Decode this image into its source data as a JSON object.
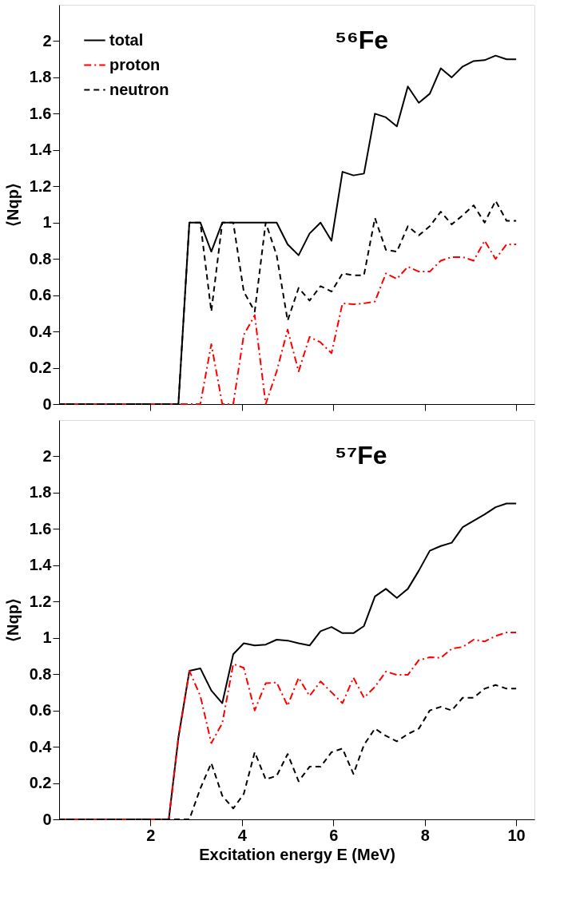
{
  "chart_data": [
    {
      "type": "line",
      "annotations": [
        "⁵⁶Fe"
      ],
      "ylabel": "⟨Nqp⟩",
      "xlim": [
        0,
        10.4
      ],
      "xticks": [
        2,
        4,
        6,
        8,
        10
      ],
      "ylim": [
        0,
        2.2
      ],
      "yticks": [
        0,
        0.2,
        0.4,
        0.6,
        0.8,
        1,
        1.2,
        1.4,
        1.6,
        1.8,
        2
      ],
      "tick_labels": "y",
      "legend": "top left",
      "grid": false,
      "x": [
        0,
        2.61,
        2.85,
        3.09,
        3.33,
        3.57,
        3.81,
        4.04,
        4.28,
        4.52,
        4.76,
        5.0,
        5.24,
        5.48,
        5.72,
        5.96,
        6.2,
        6.44,
        6.67,
        6.91,
        7.15,
        7.39,
        7.63,
        7.87,
        8.11,
        8.35,
        8.59,
        8.83,
        9.07,
        9.31,
        9.55,
        9.79,
        10.0
      ],
      "series": [
        {
          "name": "total",
          "color": "#000000",
          "line_style": "solid",
          "values": [
            0,
            0,
            1,
            1,
            0.84,
            1,
            1,
            1,
            1,
            1,
            1,
            0.88,
            0.82,
            0.94,
            1.0,
            0.9,
            1.28,
            1.26,
            1.27,
            1.6,
            1.58,
            1.53,
            1.75,
            1.66,
            1.71,
            1.85,
            1.8,
            1.86,
            1.89,
            1.895,
            1.92,
            1.9,
            1.9
          ]
        },
        {
          "name": "proton",
          "color": "#ff0000",
          "line_style": "dashdot",
          "values": [
            0,
            0,
            0,
            0,
            0.33,
            0,
            0,
            0.38,
            0.49,
            0,
            0.18,
            0.41,
            0.18,
            0.37,
            0.34,
            0.28,
            0.555,
            0.55,
            0.555,
            0.565,
            0.72,
            0.69,
            0.757,
            0.73,
            0.73,
            0.79,
            0.81,
            0.81,
            0.79,
            0.9,
            0.8,
            0.88,
            0.88
          ]
        },
        {
          "name": "neutron",
          "color": "#000000",
          "line_style": "dashed",
          "values": [
            0,
            0,
            1,
            1,
            0.51,
            1,
            1,
            0.62,
            0.51,
            1,
            0.82,
            0.46,
            0.64,
            0.57,
            0.65,
            0.62,
            0.72,
            0.71,
            0.71,
            1.025,
            0.85,
            0.84,
            0.98,
            0.93,
            0.98,
            1.06,
            0.99,
            1.04,
            1.095,
            1.0,
            1.12,
            1.01,
            1.01
          ]
        }
      ]
    },
    {
      "type": "line",
      "annotations": [
        "⁵⁷Fe"
      ],
      "ylabel": "⟨Nqp⟩",
      "xlabel": "Excitation energy E (MeV)",
      "xlim": [
        0,
        10.4
      ],
      "xticks": [
        2,
        4,
        6,
        8,
        10
      ],
      "ylim": [
        0,
        2.2
      ],
      "yticks": [
        0,
        0.2,
        0.4,
        0.6,
        0.8,
        1,
        1.2,
        1.4,
        1.6,
        1.8,
        2
      ],
      "legend": "top left",
      "grid": false,
      "x": [
        0,
        2.4,
        2.61,
        2.85,
        3.09,
        3.33,
        3.57,
        3.81,
        4.04,
        4.28,
        4.52,
        4.76,
        5.0,
        5.24,
        5.48,
        5.72,
        5.96,
        6.2,
        6.44,
        6.67,
        6.91,
        7.15,
        7.39,
        7.63,
        7.87,
        8.11,
        8.35,
        8.59,
        8.83,
        9.07,
        9.31,
        9.55,
        9.79,
        10.0
      ],
      "series": [
        {
          "name": "total",
          "color": "#000000",
          "line_style": "solid",
          "values": [
            0,
            0,
            0.45,
            0.818,
            0.832,
            0.71,
            0.64,
            0.91,
            0.97,
            0.958,
            0.963,
            0.99,
            0.985,
            0.97,
            0.958,
            1.037,
            1.06,
            1.026,
            1.026,
            1.065,
            1.228,
            1.27,
            1.22,
            1.27,
            1.37,
            1.48,
            1.506,
            1.524,
            1.61,
            1.645,
            1.68,
            1.72,
            1.74,
            1.74
          ]
        },
        {
          "name": "proton",
          "color": "#ff0000",
          "line_style": "dashdot",
          "values": [
            0,
            0,
            0.45,
            0.818,
            0.68,
            0.42,
            0.53,
            0.856,
            0.835,
            0.6,
            0.75,
            0.754,
            0.626,
            0.78,
            0.68,
            0.76,
            0.7,
            0.64,
            0.78,
            0.67,
            0.73,
            0.814,
            0.796,
            0.796,
            0.877,
            0.893,
            0.89,
            0.94,
            0.95,
            0.99,
            0.98,
            1.01,
            1.03,
            1.03
          ]
        },
        {
          "name": "neutron",
          "color": "#000000",
          "line_style": "dashed",
          "values": [
            0,
            0,
            0,
            0,
            0.17,
            0.31,
            0.13,
            0.06,
            0.14,
            0.37,
            0.22,
            0.24,
            0.36,
            0.21,
            0.29,
            0.29,
            0.37,
            0.39,
            0.25,
            0.41,
            0.5,
            0.46,
            0.43,
            0.47,
            0.5,
            0.6,
            0.62,
            0.6,
            0.67,
            0.67,
            0.72,
            0.74,
            0.72,
            0.72
          ]
        }
      ]
    }
  ]
}
